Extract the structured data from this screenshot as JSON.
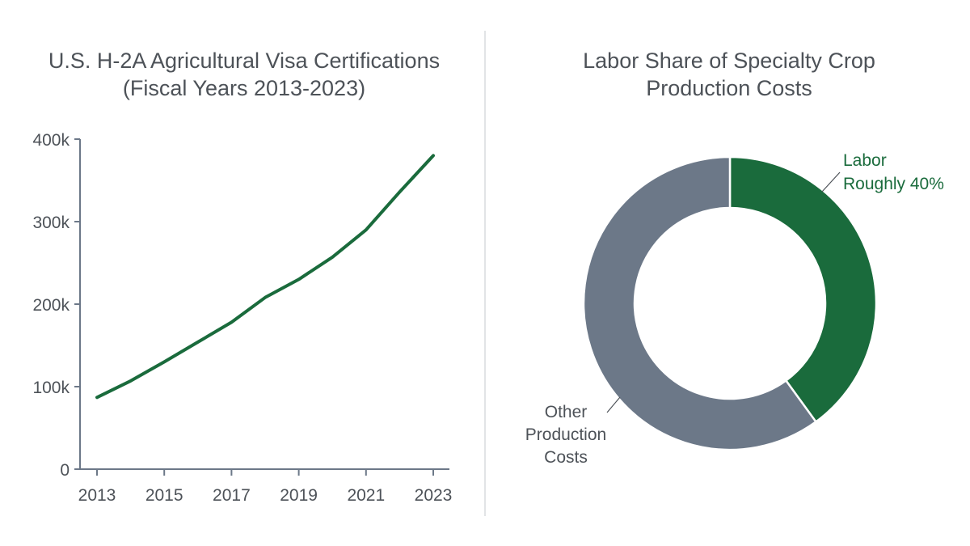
{
  "chart_data": [
    {
      "type": "line",
      "title_line1": "U.S. H-2A Agricultural Visa Certifications",
      "title_line2": "(Fiscal Years 2013-2023)",
      "xlabel": "",
      "ylabel": "",
      "x_tick_labels": [
        "2013",
        "2015",
        "2017",
        "2019",
        "2021",
        "2023"
      ],
      "y_tick_labels": [
        "0",
        "100k",
        "200k",
        "300k",
        "400k"
      ],
      "y_tick_values": [
        0,
        100000,
        200000,
        300000,
        400000
      ],
      "xlim": [
        2013,
        2023
      ],
      "ylim": [
        0,
        400000
      ],
      "grid": false,
      "series": [
        {
          "color": "#1a6b3c",
          "x": [
            2013,
            2014,
            2015,
            2016,
            2017,
            2018,
            2019,
            2020,
            2021,
            2022,
            2023
          ],
          "values": [
            87000,
            107000,
            130000,
            154000,
            178000,
            208000,
            230000,
            257000,
            290000,
            336000,
            380000
          ]
        }
      ]
    },
    {
      "type": "pie",
      "variant": "donut",
      "title_line1": "Labor Share of Specialty Crop",
      "title_line2": "Production Costs",
      "slices": [
        {
          "label_line1": "Labor",
          "label_line2": "Roughly 40%",
          "value": 40,
          "color": "#1a6b3c",
          "label_color": "#1a6b3c"
        },
        {
          "label_line1": "Other",
          "label_line2": "Production",
          "label_line3": "Costs",
          "value": 60,
          "color": "#6c7888",
          "label_color": "#4d5258"
        }
      ]
    }
  ]
}
